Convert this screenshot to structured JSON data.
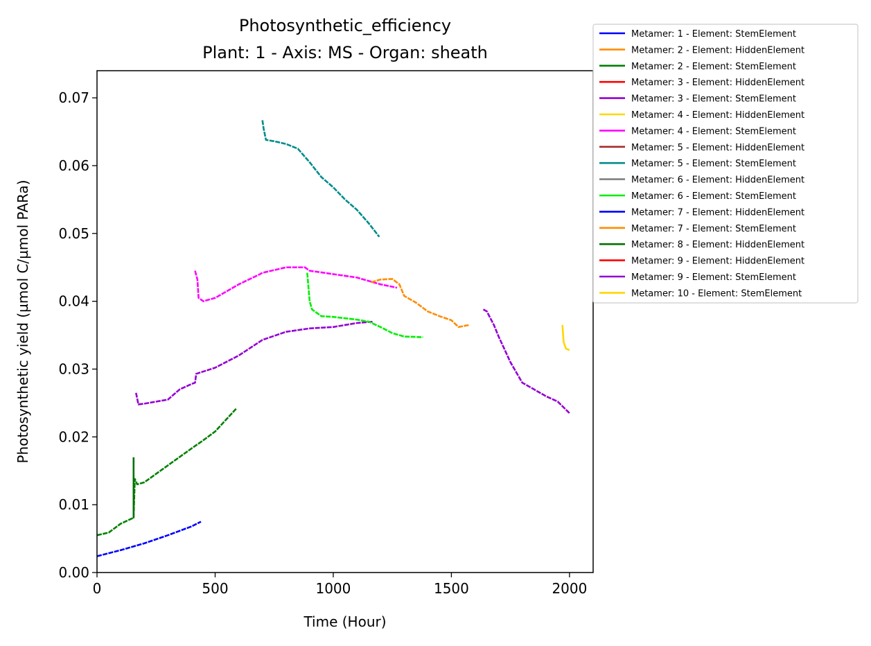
{
  "chart_data": {
    "type": "line",
    "title": "Photosynthetic_efficiency",
    "subtitle": "Plant: 1 - Axis: MS - Organ: sheath",
    "xlabel": "Time (Hour)",
    "ylabel": "Photosynthetic yield (µmol C/µmol PARa)",
    "xlim": [
      0,
      2100
    ],
    "ylim": [
      0,
      0.074
    ],
    "xticks": [
      0,
      500,
      1000,
      1500,
      2000
    ],
    "xtick_labels": [
      "0",
      "500",
      "1000",
      "1500",
      "2000"
    ],
    "yticks": [
      0,
      0.01,
      0.02,
      0.03,
      0.04,
      0.05,
      0.06,
      0.07
    ],
    "ytick_labels": [
      "0.00",
      "0.01",
      "0.02",
      "0.03",
      "0.04",
      "0.05",
      "0.06",
      "0.07"
    ],
    "grid": false,
    "legend_position": "outside-top-right",
    "series": [
      {
        "name": "Metamer: 1 - Element: StemElement",
        "color": "#0000ff",
        "style": "dashed",
        "x": [
          0,
          100,
          200,
          300,
          400,
          440
        ],
        "y": [
          0.0024,
          0.0033,
          0.0043,
          0.0055,
          0.0068,
          0.0075
        ]
      },
      {
        "name": "Metamer: 2 - Element: HiddenElement",
        "color": "#ff8c00",
        "style": "solid",
        "x": [],
        "y": []
      },
      {
        "name": "Metamer: 2 - Element: StemElement",
        "color": "#008000",
        "style": "dashed",
        "x": [
          0,
          50,
          100,
          150,
          155,
          160,
          170,
          200,
          300,
          400,
          450,
          500,
          590
        ],
        "y": [
          0.0055,
          0.0059,
          0.0072,
          0.008,
          0.0082,
          0.0138,
          0.013,
          0.0133,
          0.0158,
          0.0183,
          0.0195,
          0.0208,
          0.0242
        ]
      },
      {
        "name": "Metamer: 3 - Element: HiddenElement",
        "color": "#ff0000",
        "style": "solid",
        "x": [],
        "y": []
      },
      {
        "name": "Metamer: 3 - Element: StemElement",
        "color": "#9400d3",
        "style": "dashed",
        "x": [
          165,
          175,
          200,
          300,
          350,
          400,
          415,
          420,
          500,
          600,
          700,
          800,
          900,
          1000,
          1100,
          1170
        ],
        "y": [
          0.0265,
          0.0248,
          0.0249,
          0.0255,
          0.027,
          0.0278,
          0.028,
          0.0293,
          0.0302,
          0.032,
          0.0343,
          0.0355,
          0.036,
          0.0362,
          0.0368,
          0.037
        ]
      },
      {
        "name": "Metamer: 4 - Element: HiddenElement",
        "color": "#ffd700",
        "style": "solid",
        "x": [],
        "y": []
      },
      {
        "name": "Metamer: 4 - Element: StemElement",
        "color": "#ff00ff",
        "style": "dashed",
        "x": [
          415,
          425,
          430,
          450,
          500,
          600,
          690,
          700,
          800,
          880,
          900,
          1000,
          1100,
          1200,
          1270
        ],
        "y": [
          0.0445,
          0.0432,
          0.0405,
          0.04,
          0.0405,
          0.0425,
          0.044,
          0.0442,
          0.045,
          0.045,
          0.0445,
          0.044,
          0.0435,
          0.0425,
          0.042
        ]
      },
      {
        "name": "Metamer: 5 - Element: HiddenElement",
        "color": "#a52a2a",
        "style": "solid",
        "x": [],
        "y": []
      },
      {
        "name": "Metamer: 5 - Element: StemElement",
        "color": "#008b8b",
        "style": "dashed",
        "x": [
          700,
          705,
          715,
          750,
          800,
          850,
          900,
          950,
          1000,
          1050,
          1100,
          1150,
          1195
        ],
        "y": [
          0.0667,
          0.0655,
          0.0638,
          0.0636,
          0.0632,
          0.0625,
          0.0605,
          0.0583,
          0.0568,
          0.055,
          0.0535,
          0.0515,
          0.0495
        ]
      },
      {
        "name": "Metamer: 6 - Element: HiddenElement",
        "color": "#808080",
        "style": "solid",
        "x": [],
        "y": []
      },
      {
        "name": "Metamer: 6 - Element: StemElement",
        "color": "#00ee00",
        "style": "dashed",
        "x": [
          890,
          900,
          910,
          950,
          1000,
          1100,
          1150,
          1200,
          1250,
          1300,
          1380
        ],
        "y": [
          0.0442,
          0.04,
          0.0388,
          0.0378,
          0.0377,
          0.0373,
          0.037,
          0.0362,
          0.0353,
          0.0348,
          0.0347
        ]
      },
      {
        "name": "Metamer: 7 - Element: HiddenElement",
        "color": "#0000ff",
        "style": "solid",
        "x": [],
        "y": []
      },
      {
        "name": "Metamer: 7 - Element: StemElement",
        "color": "#ff8c00",
        "style": "dashed",
        "x": [
          1160,
          1200,
          1250,
          1280,
          1300,
          1350,
          1400,
          1450,
          1500,
          1530,
          1575
        ],
        "y": [
          0.0428,
          0.0432,
          0.0433,
          0.0425,
          0.0408,
          0.0398,
          0.0385,
          0.0378,
          0.0372,
          0.0362,
          0.0365
        ]
      },
      {
        "name": "Metamer: 8 - Element: HiddenElement",
        "color": "#007000",
        "style": "solid",
        "x": [
          155,
          155
        ],
        "y": [
          0.008,
          0.017
        ]
      },
      {
        "name": "Metamer: 9 - Element: HiddenElement",
        "color": "#ff0000",
        "style": "solid",
        "x": [],
        "y": []
      },
      {
        "name": "Metamer: 9 - Element: StemElement",
        "color": "#9400d3",
        "style": "dashed",
        "x": [
          1635,
          1650,
          1680,
          1700,
          1750,
          1800,
          1850,
          1900,
          1950,
          2000
        ],
        "y": [
          0.0388,
          0.0385,
          0.0365,
          0.0348,
          0.031,
          0.028,
          0.027,
          0.026,
          0.0252,
          0.0235
        ]
      },
      {
        "name": "Metamer: 10 - Element: StemElement",
        "color": "#ffd700",
        "style": "solid",
        "x": [
          1970,
          1975,
          1985,
          2000
        ],
        "y": [
          0.0365,
          0.034,
          0.033,
          0.0328
        ]
      }
    ]
  }
}
